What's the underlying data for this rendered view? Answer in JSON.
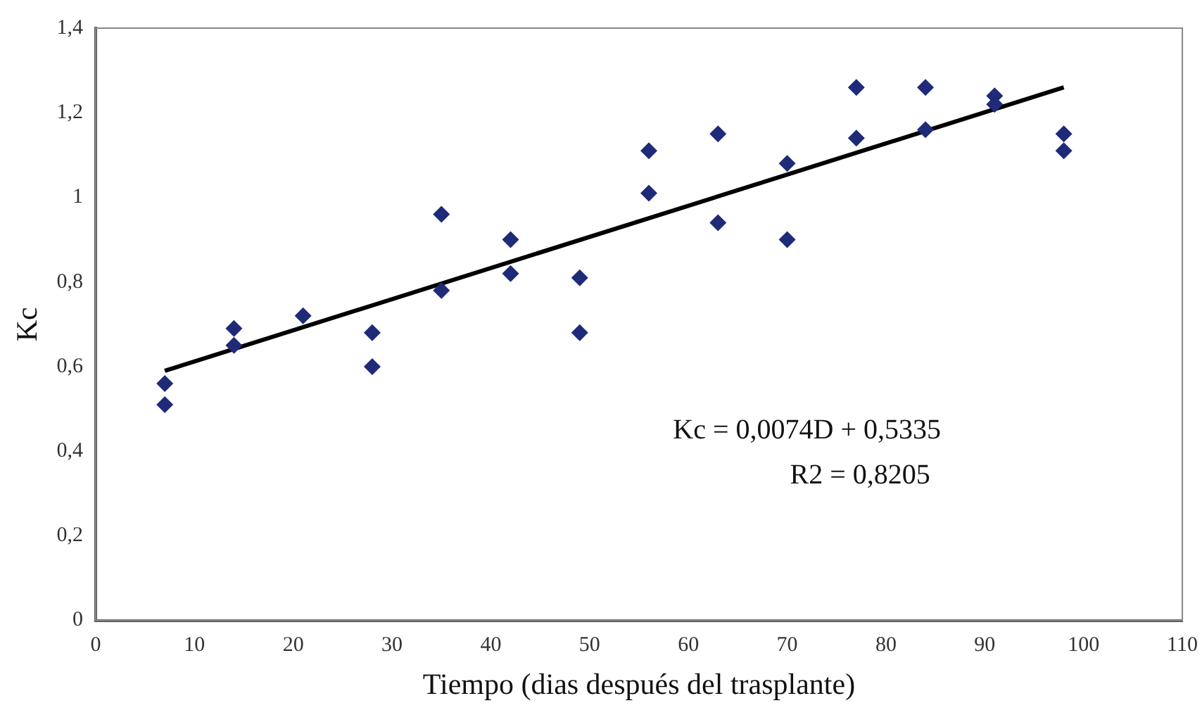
{
  "chart_data": {
    "type": "scatter",
    "xlabel": "Tiempo (dias después del trasplante)",
    "ylabel": "Kc",
    "series": [
      {
        "color": "#1f2a78",
        "marker": "diamond",
        "x": [
          7,
          7,
          14,
          14,
          21,
          28,
          28,
          35,
          35,
          42,
          42,
          49,
          49,
          56,
          56,
          63,
          63,
          70,
          70,
          77,
          77,
          84,
          84,
          91,
          91,
          98,
          98
        ],
        "values": [
          0.56,
          0.51,
          0.69,
          0.65,
          0.72,
          0.68,
          0.6,
          0.96,
          0.78,
          0.9,
          0.82,
          0.81,
          0.68,
          1.11,
          1.01,
          1.15,
          0.94,
          1.08,
          0.9,
          1.26,
          1.14,
          1.26,
          1.16,
          1.24,
          1.22,
          1.15,
          1.11
        ]
      },
      {
        "type": "line",
        "color": "#000000",
        "marker": "none",
        "x": [
          7,
          98
        ],
        "values": [
          0.59,
          1.26
        ]
      }
    ],
    "xlim": [
      0,
      110
    ],
    "xticks": [
      0,
      10,
      20,
      30,
      40,
      50,
      60,
      70,
      80,
      90,
      100,
      110
    ],
    "ylim": [
      0,
      1.4
    ],
    "yticks": [
      0,
      {
        "value": 0.2,
        "label": "0,2"
      },
      {
        "value": 0.4,
        "label": "0,4"
      },
      {
        "value": 0.6,
        "label": "0,6"
      },
      {
        "value": 0.8,
        "label": "0,8"
      },
      1,
      {
        "value": 1.2,
        "label": "1,2"
      },
      {
        "value": 1.4,
        "label": "1,4"
      }
    ],
    "grid": false,
    "legend": false,
    "annotations": [
      "Kc = 0,0074D + 0,5335",
      "R2 = 0,8205"
    ]
  }
}
